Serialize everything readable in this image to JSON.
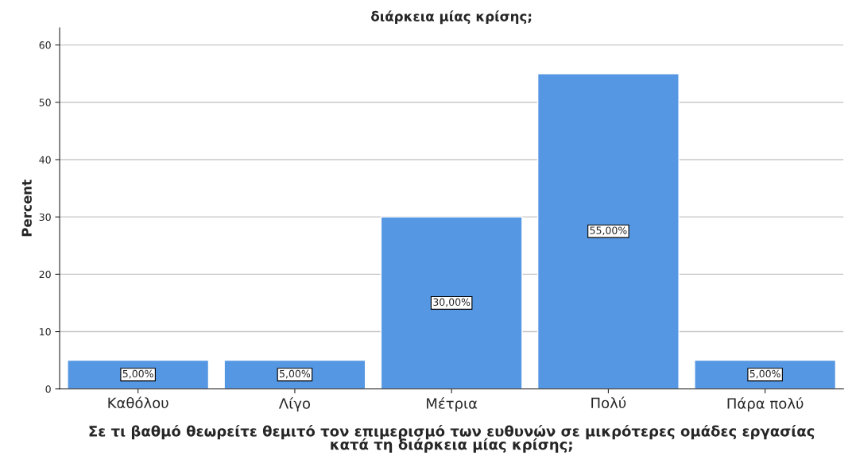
{
  "chart_data": {
    "type": "bar",
    "title": "διάρκεια μίας κρίσης;",
    "xlabel": "Σε τι βαθμό θεωρείτε θεμιτό τον επιμερισμό των ευθυνών σε μικρότερες ομάδες εργασίας\nκατά τη διάρκεια μίας κρίσης;",
    "ylabel": "Percent",
    "categories": [
      "Καθόλου",
      "Λίγο",
      "Μέτρια",
      "Πολύ",
      "Πάρα πολύ"
    ],
    "values": [
      5,
      5,
      30,
      55,
      5
    ],
    "value_labels": [
      "5,00%",
      "5,00%",
      "30,00%",
      "55,00%",
      "5,00%"
    ],
    "color": "#5597e2",
    "ylim": [
      0,
      63
    ],
    "yticks": [
      0,
      10,
      20,
      30,
      40,
      50,
      60
    ],
    "grid": "y",
    "legend": false
  }
}
